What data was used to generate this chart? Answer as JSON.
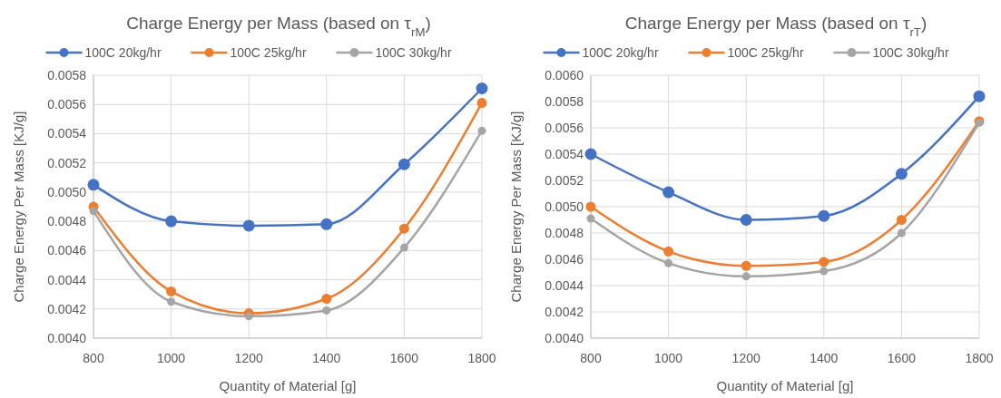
{
  "chart_data": [
    {
      "type": "line",
      "title": "Charge Energy per Mass (based on τ$_{rM}$)",
      "xlabel": "Quantity of Material [g]",
      "ylabel": "Charge Energy Per Mass [KJ/g]",
      "x": [
        800,
        1000,
        1200,
        1400,
        1600,
        1800
      ],
      "series": [
        {
          "name": "100C 20kg/hr",
          "color": "#4472c4",
          "values": [
            0.00505,
            0.0048,
            0.00477,
            0.00478,
            0.00519,
            0.00571
          ]
        },
        {
          "name": "100C 25kg/hr",
          "color": "#ed7d31",
          "values": [
            0.0049,
            0.00432,
            0.00417,
            0.00427,
            0.00475,
            0.00561
          ]
        },
        {
          "name": "100C 30kg/hr",
          "color": "#a5a5a5",
          "values": [
            0.00487,
            0.00425,
            0.00415,
            0.00419,
            0.00462,
            0.00542
          ]
        }
      ],
      "xlim": [
        800,
        1800
      ],
      "xticks": [
        800,
        1000,
        1200,
        1400,
        1600,
        1800
      ],
      "ylim": [
        0.004,
        0.0058
      ],
      "yticks": [
        {
          "value": 0.004,
          "label": "0.0040"
        },
        {
          "value": 0.0042,
          "label": "0.0042"
        },
        {
          "value": 0.0044,
          "label": "0.0044"
        },
        {
          "value": 0.0046,
          "label": "0.0046"
        },
        {
          "value": 0.0048,
          "label": "0.0048"
        },
        {
          "value": 0.005,
          "label": "0.0050"
        },
        {
          "value": 0.0052,
          "label": "0.0052"
        },
        {
          "value": 0.0054,
          "label": "0.0054"
        },
        {
          "value": 0.0056,
          "label": "0.0056"
        },
        {
          "value": 0.0058,
          "label": "0.0058"
        }
      ],
      "grid": true,
      "legend": "top",
      "marker": "circle",
      "line_style": "solid"
    },
    {
      "type": "line",
      "title": "Charge Energy per Mass (based on τ$_{rT}$)",
      "xlabel": "Quantity of Material [g]",
      "ylabel": "Charge Energy Per Mass [KJ/g]",
      "x": [
        800,
        1000,
        1200,
        1400,
        1600,
        1800
      ],
      "series": [
        {
          "name": "100C 20kg/hr",
          "color": "#4472c4",
          "values": [
            0.0054,
            0.00511,
            0.0049,
            0.00493,
            0.00525,
            0.00584
          ]
        },
        {
          "name": "100C 25kg/hr",
          "color": "#ed7d31",
          "values": [
            0.005,
            0.00466,
            0.00455,
            0.00458,
            0.0049,
            0.00565
          ]
        },
        {
          "name": "100C 30kg/hr",
          "color": "#a5a5a5",
          "values": [
            0.00491,
            0.00457,
            0.00447,
            0.00451,
            0.0048,
            0.00564
          ]
        }
      ],
      "xlim": [
        800,
        1800
      ],
      "xticks": [
        800,
        1000,
        1200,
        1400,
        1600,
        1800
      ],
      "ylim": [
        0.004,
        0.006
      ],
      "yticks": [
        {
          "value": 0.004,
          "label": "0.0040"
        },
        {
          "value": 0.0042,
          "label": "0.0042"
        },
        {
          "value": 0.0044,
          "label": "0.0044"
        },
        {
          "value": 0.0046,
          "label": "0.0046"
        },
        {
          "value": 0.0048,
          "label": "0.0048"
        },
        {
          "value": 0.005,
          "label": "0.0050"
        },
        {
          "value": 0.0052,
          "label": "0.0052"
        },
        {
          "value": 0.0054,
          "label": "0.0054"
        },
        {
          "value": 0.0056,
          "label": "0.0056"
        },
        {
          "value": 0.0058,
          "label": "0.0058"
        },
        {
          "value": 0.006,
          "label": "0.0060"
        }
      ],
      "grid": true,
      "legend": "top",
      "marker": "circle",
      "line_style": "solid"
    }
  ]
}
